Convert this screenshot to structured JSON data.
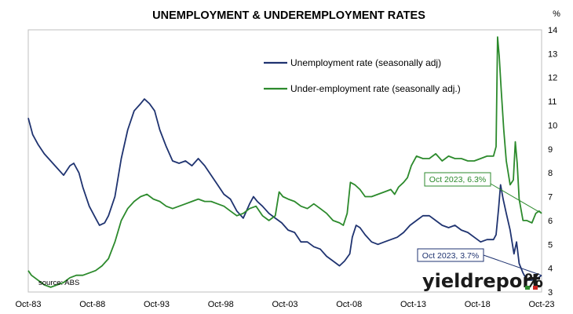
{
  "chart_data": {
    "type": "line",
    "title": "UNEMPLOYMENT & UNDEREMPLOYMENT RATES",
    "ylabel": "%",
    "ylim": [
      3,
      14
    ],
    "yticks": [
      3,
      4,
      5,
      6,
      7,
      8,
      9,
      10,
      11,
      12,
      13,
      14
    ],
    "xlim": [
      1983.75,
      2023.75
    ],
    "xticks": [
      {
        "value": 1983.75,
        "label": "Oct-83"
      },
      {
        "value": 1988.75,
        "label": "Oct-88"
      },
      {
        "value": 1993.75,
        "label": "Oct-93"
      },
      {
        "value": 1998.75,
        "label": "Oct-98"
      },
      {
        "value": 2003.75,
        "label": "Oct-03"
      },
      {
        "value": 2008.75,
        "label": "Oct-08"
      },
      {
        "value": 2013.75,
        "label": "Oct-13"
      },
      {
        "value": 2018.75,
        "label": "Oct-18"
      },
      {
        "value": 2023.75,
        "label": "Oct-23"
      }
    ],
    "legend_position": "top-center",
    "source": "source: ABS",
    "series": [
      {
        "name": "Unemployment rate (seasonally adj)",
        "color": "#1f3370",
        "points": [
          [
            1983.75,
            10.3
          ],
          [
            1984.1,
            9.6
          ],
          [
            1984.5,
            9.2
          ],
          [
            1985.0,
            8.8
          ],
          [
            1985.5,
            8.5
          ],
          [
            1986.0,
            8.2
          ],
          [
            1986.5,
            7.9
          ],
          [
            1987.0,
            8.3
          ],
          [
            1987.3,
            8.4
          ],
          [
            1987.7,
            8.0
          ],
          [
            1988.0,
            7.4
          ],
          [
            1988.5,
            6.6
          ],
          [
            1989.0,
            6.1
          ],
          [
            1989.3,
            5.8
          ],
          [
            1989.7,
            5.9
          ],
          [
            1990.0,
            6.2
          ],
          [
            1990.5,
            7.0
          ],
          [
            1991.0,
            8.6
          ],
          [
            1991.5,
            9.8
          ],
          [
            1992.0,
            10.6
          ],
          [
            1992.5,
            10.9
          ],
          [
            1992.8,
            11.1
          ],
          [
            1993.2,
            10.9
          ],
          [
            1993.6,
            10.6
          ],
          [
            1994.0,
            9.8
          ],
          [
            1994.5,
            9.1
          ],
          [
            1995.0,
            8.5
          ],
          [
            1995.5,
            8.4
          ],
          [
            1996.0,
            8.5
          ],
          [
            1996.5,
            8.3
          ],
          [
            1997.0,
            8.6
          ],
          [
            1997.5,
            8.3
          ],
          [
            1998.0,
            7.9
          ],
          [
            1998.5,
            7.5
          ],
          [
            1999.0,
            7.1
          ],
          [
            1999.5,
            6.9
          ],
          [
            2000.0,
            6.4
          ],
          [
            2000.5,
            6.1
          ],
          [
            2001.0,
            6.7
          ],
          [
            2001.3,
            7.0
          ],
          [
            2001.6,
            6.8
          ],
          [
            2002.0,
            6.6
          ],
          [
            2002.5,
            6.3
          ],
          [
            2003.0,
            6.1
          ],
          [
            2003.5,
            5.9
          ],
          [
            2004.0,
            5.6
          ],
          [
            2004.5,
            5.5
          ],
          [
            2005.0,
            5.1
          ],
          [
            2005.5,
            5.1
          ],
          [
            2006.0,
            4.9
          ],
          [
            2006.5,
            4.8
          ],
          [
            2007.0,
            4.5
          ],
          [
            2007.5,
            4.3
          ],
          [
            2008.0,
            4.1
          ],
          [
            2008.4,
            4.3
          ],
          [
            2008.8,
            4.6
          ],
          [
            2009.0,
            5.3
          ],
          [
            2009.3,
            5.8
          ],
          [
            2009.6,
            5.7
          ],
          [
            2010.0,
            5.4
          ],
          [
            2010.5,
            5.1
          ],
          [
            2011.0,
            5.0
          ],
          [
            2011.5,
            5.1
          ],
          [
            2012.0,
            5.2
          ],
          [
            2012.5,
            5.3
          ],
          [
            2013.0,
            5.5
          ],
          [
            2013.5,
            5.8
          ],
          [
            2014.0,
            6.0
          ],
          [
            2014.5,
            6.2
          ],
          [
            2015.0,
            6.2
          ],
          [
            2015.5,
            6.0
          ],
          [
            2016.0,
            5.8
          ],
          [
            2016.5,
            5.7
          ],
          [
            2017.0,
            5.8
          ],
          [
            2017.5,
            5.6
          ],
          [
            2018.0,
            5.5
          ],
          [
            2018.5,
            5.3
          ],
          [
            2019.0,
            5.1
          ],
          [
            2019.5,
            5.2
          ],
          [
            2020.0,
            5.2
          ],
          [
            2020.2,
            5.4
          ],
          [
            2020.4,
            6.5
          ],
          [
            2020.55,
            7.5
          ],
          [
            2020.75,
            6.9
          ],
          [
            2021.0,
            6.3
          ],
          [
            2021.3,
            5.6
          ],
          [
            2021.6,
            4.6
          ],
          [
            2021.8,
            5.1
          ],
          [
            2022.0,
            4.2
          ],
          [
            2022.3,
            3.8
          ],
          [
            2022.6,
            3.5
          ],
          [
            2023.0,
            3.5
          ],
          [
            2023.3,
            3.6
          ],
          [
            2023.5,
            3.6
          ],
          [
            2023.75,
            3.7
          ]
        ]
      },
      {
        "name": "Under-employment rate (seasonally adj.)",
        "color": "#2c8a2c",
        "points": [
          [
            1983.75,
            3.9
          ],
          [
            1984.0,
            3.7
          ],
          [
            1984.5,
            3.5
          ],
          [
            1985.0,
            3.3
          ],
          [
            1985.5,
            3.2
          ],
          [
            1986.0,
            3.3
          ],
          [
            1986.5,
            3.4
          ],
          [
            1987.0,
            3.6
          ],
          [
            1987.5,
            3.7
          ],
          [
            1988.0,
            3.7
          ],
          [
            1988.5,
            3.8
          ],
          [
            1989.0,
            3.9
          ],
          [
            1989.5,
            4.1
          ],
          [
            1990.0,
            4.4
          ],
          [
            1990.5,
            5.1
          ],
          [
            1991.0,
            6.0
          ],
          [
            1991.5,
            6.5
          ],
          [
            1992.0,
            6.8
          ],
          [
            1992.5,
            7.0
          ],
          [
            1993.0,
            7.1
          ],
          [
            1993.5,
            6.9
          ],
          [
            1994.0,
            6.8
          ],
          [
            1994.5,
            6.6
          ],
          [
            1995.0,
            6.5
          ],
          [
            1995.5,
            6.6
          ],
          [
            1996.0,
            6.7
          ],
          [
            1996.5,
            6.8
          ],
          [
            1997.0,
            6.9
          ],
          [
            1997.5,
            6.8
          ],
          [
            1998.0,
            6.8
          ],
          [
            1998.5,
            6.7
          ],
          [
            1999.0,
            6.6
          ],
          [
            1999.5,
            6.4
          ],
          [
            2000.0,
            6.2
          ],
          [
            2000.5,
            6.3
          ],
          [
            2001.0,
            6.5
          ],
          [
            2001.5,
            6.6
          ],
          [
            2002.0,
            6.2
          ],
          [
            2002.5,
            6.0
          ],
          [
            2003.0,
            6.2
          ],
          [
            2003.3,
            7.2
          ],
          [
            2003.6,
            7.0
          ],
          [
            2004.0,
            6.9
          ],
          [
            2004.5,
            6.8
          ],
          [
            2005.0,
            6.6
          ],
          [
            2005.5,
            6.5
          ],
          [
            2006.0,
            6.7
          ],
          [
            2006.5,
            6.5
          ],
          [
            2007.0,
            6.3
          ],
          [
            2007.5,
            6.0
          ],
          [
            2008.0,
            5.9
          ],
          [
            2008.3,
            5.8
          ],
          [
            2008.6,
            6.3
          ],
          [
            2008.85,
            7.6
          ],
          [
            2009.2,
            7.5
          ],
          [
            2009.6,
            7.3
          ],
          [
            2010.0,
            7.0
          ],
          [
            2010.5,
            7.0
          ],
          [
            2011.0,
            7.1
          ],
          [
            2011.5,
            7.2
          ],
          [
            2012.0,
            7.3
          ],
          [
            2012.3,
            7.1
          ],
          [
            2012.6,
            7.4
          ],
          [
            2013.0,
            7.6
          ],
          [
            2013.3,
            7.8
          ],
          [
            2013.6,
            8.3
          ],
          [
            2014.0,
            8.7
          ],
          [
            2014.5,
            8.6
          ],
          [
            2015.0,
            8.6
          ],
          [
            2015.5,
            8.8
          ],
          [
            2016.0,
            8.5
          ],
          [
            2016.5,
            8.7
          ],
          [
            2017.0,
            8.6
          ],
          [
            2017.5,
            8.6
          ],
          [
            2018.0,
            8.5
          ],
          [
            2018.5,
            8.5
          ],
          [
            2019.0,
            8.6
          ],
          [
            2019.5,
            8.7
          ],
          [
            2020.0,
            8.7
          ],
          [
            2020.2,
            9.1
          ],
          [
            2020.32,
            13.7
          ],
          [
            2020.45,
            12.9
          ],
          [
            2020.6,
            11.5
          ],
          [
            2020.8,
            9.8
          ],
          [
            2021.0,
            8.5
          ],
          [
            2021.3,
            7.5
          ],
          [
            2021.55,
            7.7
          ],
          [
            2021.7,
            9.3
          ],
          [
            2021.85,
            8.4
          ],
          [
            2022.0,
            6.9
          ],
          [
            2022.3,
            6.0
          ],
          [
            2022.6,
            6.0
          ],
          [
            2023.0,
            5.9
          ],
          [
            2023.3,
            6.3
          ],
          [
            2023.55,
            6.4
          ],
          [
            2023.75,
            6.3
          ]
        ]
      }
    ],
    "annotations": [
      {
        "text": "Oct 2023, 6.3%",
        "series": 1,
        "x": 2023.75,
        "y": 6.3,
        "color": "#2c8a2c"
      },
      {
        "text": "Oct 2023, 3.7%",
        "series": 0,
        "x": 2023.75,
        "y": 3.7,
        "color": "#1f3370"
      }
    ]
  },
  "branding": {
    "logo_word": "yieldreport",
    "logo_symbol": "%"
  }
}
